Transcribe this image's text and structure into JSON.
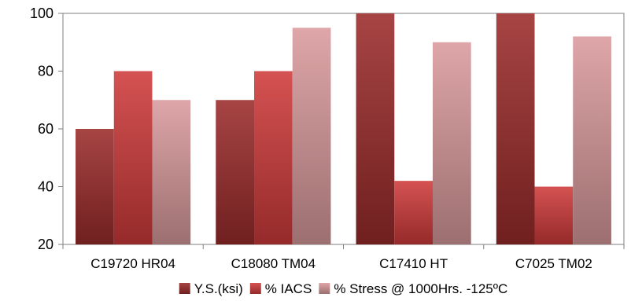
{
  "chart_data": {
    "type": "bar",
    "categories": [
      "C19720 HR04",
      "C18080 TM04",
      "C17410 HT",
      "C7025 TM02"
    ],
    "series": [
      {
        "name": "Y.S.(ksi)",
        "values": [
          60,
          70,
          100,
          100
        ],
        "color": "#9b2b2b"
      },
      {
        "name": "% IACS",
        "values": [
          80,
          80,
          42,
          40
        ],
        "color": "#cf3a3a"
      },
      {
        "name": "% Stress @ 1000Hrs. -125ºC",
        "values": [
          70,
          95,
          90,
          92
        ],
        "color": "#d99a9c"
      }
    ],
    "ylim": [
      20,
      100
    ],
    "yticks": [
      20,
      40,
      60,
      80,
      100
    ],
    "grid": false,
    "legend": "bottom"
  }
}
